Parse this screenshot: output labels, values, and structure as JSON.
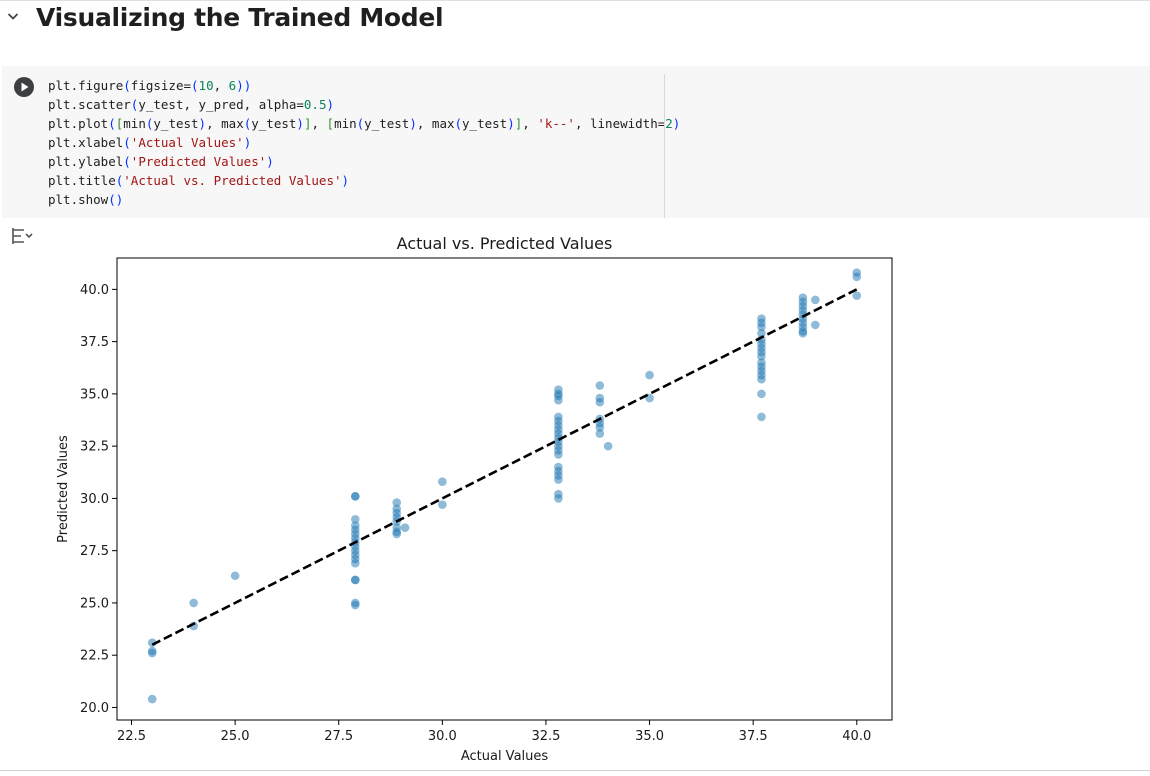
{
  "section": {
    "title": "Visualizing the Trained Model"
  },
  "code_cell": {
    "lines": [
      [
        {
          "t": "plt.figure"
        },
        {
          "t": "(",
          "c": "paren"
        },
        {
          "t": "figsize="
        },
        {
          "t": "(",
          "c": "paren"
        },
        {
          "t": "10",
          "c": "num"
        },
        {
          "t": ", "
        },
        {
          "t": "6",
          "c": "num"
        },
        {
          "t": "))",
          "c": "paren"
        }
      ],
      [
        {
          "t": "plt.scatter"
        },
        {
          "t": "(",
          "c": "paren"
        },
        {
          "t": "y_test, y_pred, alpha="
        },
        {
          "t": "0.5",
          "c": "num"
        },
        {
          "t": ")",
          "c": "paren"
        }
      ],
      [
        {
          "t": "plt.plot"
        },
        {
          "t": "(",
          "c": "paren"
        },
        {
          "t": "[",
          "c": "bracket"
        },
        {
          "t": "min"
        },
        {
          "t": "(",
          "c": "paren"
        },
        {
          "t": "y_test"
        },
        {
          "t": ")",
          "c": "paren"
        },
        {
          "t": ", "
        },
        {
          "t": "max"
        },
        {
          "t": "(",
          "c": "paren"
        },
        {
          "t": "y_test"
        },
        {
          "t": ")",
          "c": "paren"
        },
        {
          "t": "]",
          "c": "bracket"
        },
        {
          "t": ", "
        },
        {
          "t": "[",
          "c": "bracket"
        },
        {
          "t": "min"
        },
        {
          "t": "(",
          "c": "paren"
        },
        {
          "t": "y_test"
        },
        {
          "t": ")",
          "c": "paren"
        },
        {
          "t": ", "
        },
        {
          "t": "max"
        },
        {
          "t": "(",
          "c": "paren"
        },
        {
          "t": "y_test"
        },
        {
          "t": ")",
          "c": "paren"
        },
        {
          "t": "]",
          "c": "bracket"
        },
        {
          "t": ", "
        },
        {
          "t": "'k--'",
          "c": "str"
        },
        {
          "t": ", linewidth="
        },
        {
          "t": "2",
          "c": "num"
        },
        {
          "t": ")",
          "c": "paren"
        }
      ],
      [
        {
          "t": "plt.xlabel"
        },
        {
          "t": "(",
          "c": "paren"
        },
        {
          "t": "'Actual Values'",
          "c": "str"
        },
        {
          "t": ")",
          "c": "paren"
        }
      ],
      [
        {
          "t": "plt.ylabel"
        },
        {
          "t": "(",
          "c": "paren"
        },
        {
          "t": "'Predicted Values'",
          "c": "str"
        },
        {
          "t": ")",
          "c": "paren"
        }
      ],
      [
        {
          "t": "plt.title"
        },
        {
          "t": "(",
          "c": "paren"
        },
        {
          "t": "'Actual vs. Predicted Values'",
          "c": "str"
        },
        {
          "t": ")",
          "c": "paren"
        }
      ],
      [
        {
          "t": "plt.show"
        },
        {
          "t": "()",
          "c": "paren"
        }
      ]
    ]
  },
  "icons": {
    "collapse": "chevron-down-icon",
    "run": "play-icon",
    "output": "output-settings-icon"
  },
  "colors": {
    "point": "#1f77b4",
    "diagonal": "#000000",
    "section_title": "#1f1f1f",
    "cell_bg": "#f7f7f7"
  },
  "chart_data": {
    "type": "scatter",
    "title": "Actual vs. Predicted Values",
    "xlabel": "Actual Values",
    "ylabel": "Predicted Values",
    "xlim": [
      22.15,
      40.85
    ],
    "ylim": [
      19.4,
      41.5
    ],
    "xticks": [
      "22.5",
      "25.0",
      "27.5",
      "30.0",
      "32.5",
      "35.0",
      "37.5",
      "40.0"
    ],
    "yticks": [
      "20.0",
      "22.5",
      "25.0",
      "27.5",
      "30.0",
      "32.5",
      "35.0",
      "37.5",
      "40.0"
    ],
    "grid": false,
    "legend": "none",
    "point_alpha": 0.5,
    "diagonal": {
      "x": [
        23.0,
        40.0
      ],
      "y": [
        23.0,
        40.0
      ],
      "style": "k--"
    },
    "points": [
      [
        23,
        23.1
      ],
      [
        23,
        22.7
      ],
      [
        23,
        22.6
      ],
      [
        23,
        20.4
      ],
      [
        24,
        25.0
      ],
      [
        24,
        23.9
      ],
      [
        25,
        26.3
      ],
      [
        27.9,
        30.1
      ],
      [
        27.9,
        30.1
      ],
      [
        27.9,
        29.0
      ],
      [
        27.9,
        28.7
      ],
      [
        27.9,
        28.5
      ],
      [
        27.9,
        28.3
      ],
      [
        27.9,
        28.1
      ],
      [
        27.9,
        27.9
      ],
      [
        27.9,
        27.7
      ],
      [
        27.9,
        27.5
      ],
      [
        27.9,
        27.3
      ],
      [
        27.9,
        27.1
      ],
      [
        27.9,
        26.9
      ],
      [
        27.9,
        26.1
      ],
      [
        27.9,
        26.1
      ],
      [
        27.9,
        25.0
      ],
      [
        27.9,
        24.9
      ],
      [
        28.9,
        29.8
      ],
      [
        28.9,
        29.5
      ],
      [
        28.9,
        29.3
      ],
      [
        28.9,
        29.1
      ],
      [
        28.9,
        28.9
      ],
      [
        28.9,
        28.6
      ],
      [
        28.9,
        28.4
      ],
      [
        28.9,
        28.3
      ],
      [
        29.1,
        28.6
      ],
      [
        30,
        30.8
      ],
      [
        30,
        29.7
      ],
      [
        32.8,
        35.2
      ],
      [
        32.8,
        35.0
      ],
      [
        32.8,
        34.9
      ],
      [
        32.8,
        34.7
      ],
      [
        32.8,
        33.9
      ],
      [
        32.8,
        33.7
      ],
      [
        32.8,
        33.5
      ],
      [
        32.8,
        33.3
      ],
      [
        32.8,
        33.1
      ],
      [
        32.8,
        32.9
      ],
      [
        32.8,
        32.7
      ],
      [
        32.8,
        32.5
      ],
      [
        32.8,
        32.3
      ],
      [
        32.8,
        32.1
      ],
      [
        32.8,
        31.5
      ],
      [
        32.8,
        31.3
      ],
      [
        32.8,
        31.1
      ],
      [
        32.8,
        30.9
      ],
      [
        32.8,
        30.2
      ],
      [
        32.8,
        30.0
      ],
      [
        33.8,
        35.4
      ],
      [
        33.8,
        34.8
      ],
      [
        33.8,
        34.6
      ],
      [
        33.8,
        33.8
      ],
      [
        33.8,
        33.6
      ],
      [
        33.8,
        33.4
      ],
      [
        33.8,
        33.1
      ],
      [
        34,
        32.5
      ],
      [
        35,
        35.9
      ],
      [
        35,
        34.8
      ],
      [
        37.7,
        38.6
      ],
      [
        37.7,
        38.4
      ],
      [
        37.7,
        38.2
      ],
      [
        37.7,
        37.9
      ],
      [
        37.7,
        37.6
      ],
      [
        37.7,
        37.4
      ],
      [
        37.7,
        37.2
      ],
      [
        37.7,
        37.0
      ],
      [
        37.7,
        36.8
      ],
      [
        37.7,
        36.5
      ],
      [
        37.7,
        36.3
      ],
      [
        37.7,
        36.1
      ],
      [
        37.7,
        35.9
      ],
      [
        37.7,
        35.7
      ],
      [
        37.7,
        35.0
      ],
      [
        37.7,
        33.9
      ],
      [
        38.7,
        39.6
      ],
      [
        38.7,
        39.4
      ],
      [
        38.7,
        39.2
      ],
      [
        38.7,
        39.0
      ],
      [
        38.7,
        38.8
      ],
      [
        38.7,
        38.6
      ],
      [
        38.7,
        38.4
      ],
      [
        38.7,
        38.2
      ],
      [
        38.7,
        38.0
      ],
      [
        38.7,
        37.9
      ],
      [
        39,
        39.5
      ],
      [
        39,
        38.3
      ],
      [
        40,
        40.8
      ],
      [
        40,
        40.6
      ],
      [
        40,
        39.7
      ]
    ]
  }
}
